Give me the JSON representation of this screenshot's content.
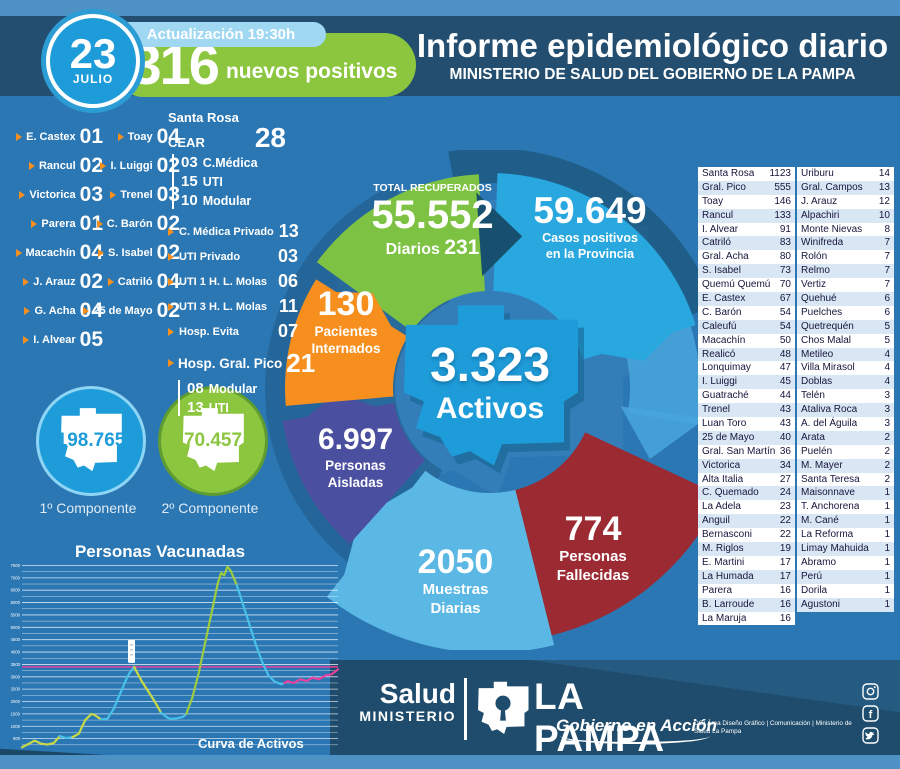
{
  "header": {
    "date_day": "23",
    "date_month": "JULIO",
    "update_label": "Actualización 19:30h",
    "new_positives_value": "316",
    "new_positives_label": "nuevos positivos",
    "title": "Informe epidemiológico diario",
    "subtitle": "MINISTERIO DE SALUD DEL GOBIERNO DE LA PAMPA"
  },
  "left_list": {
    "col1": [
      {
        "name": "E. Castex",
        "value": "01"
      },
      {
        "name": "Rancul",
        "value": "02"
      },
      {
        "name": "Victorica",
        "value": "03"
      },
      {
        "name": "Parera",
        "value": "01"
      },
      {
        "name": "Macachín",
        "value": "04"
      },
      {
        "name": "J. Arauz",
        "value": "02"
      },
      {
        "name": "G. Acha",
        "value": "04"
      },
      {
        "name": "I. Alvear",
        "value": "05"
      }
    ],
    "col2": [
      {
        "name": "Toay",
        "value": "04"
      },
      {
        "name": "I. Luiggi",
        "value": "02"
      },
      {
        "name": "Trenel",
        "value": "03"
      },
      {
        "name": "C. Barón",
        "value": "02"
      },
      {
        "name": "S. Isabel",
        "value": "02"
      },
      {
        "name": "Catriló",
        "value": "04"
      },
      {
        "name": "25 de Mayo",
        "value": "02"
      }
    ]
  },
  "cear": {
    "region": "Santa Rosa",
    "name": "CEAR",
    "total": "28",
    "breakdown": [
      {
        "value": "03",
        "label": "C.Médica"
      },
      {
        "value": "15",
        "label": "UTI"
      },
      {
        "value": "10",
        "label": "Modular"
      }
    ],
    "items": [
      {
        "label": "C. Médica Privado",
        "value": "13"
      },
      {
        "label": "UTI Privado",
        "value": "03"
      },
      {
        "label": "UTI 1 H. L. Molas",
        "value": "06"
      },
      {
        "label": "UTI 3 H. L. Molas",
        "value": "11"
      },
      {
        "label": "Hosp. Evita",
        "value": "07"
      }
    ],
    "gral_pico": {
      "label": "Hosp. Gral. Pico",
      "value": "21",
      "breakdown": [
        {
          "value": "08",
          "label": "Modular"
        },
        {
          "value": "13",
          "label": "UTI"
        }
      ]
    }
  },
  "vaccination": {
    "first": {
      "value": "198.765",
      "label": "1º Componente",
      "color": "#1E9CD9",
      "ring": "#8ED4F4"
    },
    "second": {
      "value": "70.457",
      "label": "2º Componente",
      "color": "#8CC63F",
      "ring": "#5E9C31"
    }
  },
  "donut": {
    "center": {
      "value": "3.323",
      "label": "Activos"
    },
    "recovered": {
      "title": "TOTAL RECUPERADOS",
      "value": "55.552",
      "daily_label": "Diarios",
      "daily_value": "231",
      "color": "#7DC242"
    },
    "positives": {
      "value": "59.649",
      "line1": "Casos positivos",
      "line2": "en la Provincia",
      "color": "#29A8E0"
    },
    "hospitalized": {
      "value": "130",
      "line1": "Pacientes",
      "line2": "Internados",
      "color": "#F78F1E"
    },
    "isolated": {
      "value": "6.997",
      "line1": "Personas",
      "line2": "Aisladas",
      "color": "#4B4F9F"
    },
    "samples": {
      "value": "2050",
      "line1": "Muestras",
      "line2": "Diarias",
      "color": "#5BB7E4"
    },
    "deaths": {
      "value": "774",
      "line1": "Personas",
      "line2": "Fallecidas",
      "color": "#9C2A33"
    }
  },
  "table": {
    "left_rows": [
      [
        "Santa Rosa",
        "1123"
      ],
      [
        "Gral. Pico",
        "555"
      ],
      [
        "Toay",
        "146"
      ],
      [
        "Rancul",
        "133"
      ],
      [
        "I. Alvear",
        "91"
      ],
      [
        "Catriló",
        "83"
      ],
      [
        "Gral. Acha",
        "80"
      ],
      [
        "S. Isabel",
        "73"
      ],
      [
        "Quemú Quemú",
        "70"
      ],
      [
        "E. Castex",
        "67"
      ],
      [
        "C. Barón",
        "54"
      ],
      [
        "Caleufú",
        "54"
      ],
      [
        "Macachín",
        "50"
      ],
      [
        "Realicó",
        "48"
      ],
      [
        "Lonquimay",
        "47"
      ],
      [
        "I. Luiggi",
        "45"
      ],
      [
        "Guatraché",
        "44"
      ],
      [
        "Trenel",
        "43"
      ],
      [
        "Luan Toro",
        "43"
      ],
      [
        "25 de Mayo",
        "40"
      ],
      [
        "Gral. San Martín",
        "36"
      ],
      [
        "Victorica",
        "34"
      ],
      [
        "Alta Italia",
        "27"
      ],
      [
        "C. Quemado",
        "24"
      ],
      [
        "La Adela",
        "23"
      ],
      [
        "Anguil",
        "22"
      ],
      [
        "Bernasconi",
        "22"
      ],
      [
        "M. Riglos",
        "19"
      ],
      [
        "E. Martini",
        "17"
      ],
      [
        "La Humada",
        "17"
      ],
      [
        "Parera",
        "16"
      ],
      [
        "B. Larroude",
        "16"
      ],
      [
        "La Maruja",
        "16"
      ]
    ],
    "right_rows": [
      [
        "Uriburu",
        "14"
      ],
      [
        "Gral. Campos",
        "13"
      ],
      [
        "J. Arauz",
        "12"
      ],
      [
        "Alpachiri",
        "10"
      ],
      [
        "Monte Nievas",
        "8"
      ],
      [
        "Winifreda",
        "7"
      ],
      [
        "Rolón",
        "7"
      ],
      [
        "Relmo",
        "7"
      ],
      [
        "Vertiz",
        "7"
      ],
      [
        "Quehué",
        "6"
      ],
      [
        "Puelches",
        "6"
      ],
      [
        "Quetrequén",
        "5"
      ],
      [
        "Chos Malal",
        "5"
      ],
      [
        "Metileo",
        "4"
      ],
      [
        "Villa Mirasol",
        "4"
      ],
      [
        "Doblas",
        "4"
      ],
      [
        "Telén",
        "3"
      ],
      [
        "Ataliva Roca",
        "3"
      ],
      [
        "A. del Águila",
        "3"
      ],
      [
        "Arata",
        "2"
      ],
      [
        "Puelén",
        "2"
      ],
      [
        "M. Mayer",
        "2"
      ],
      [
        "Santa Teresa",
        "2"
      ],
      [
        "Maisonnave",
        "1"
      ],
      [
        "T. Anchorena",
        "1"
      ],
      [
        "M. Cané",
        "1"
      ],
      [
        "La Reforma",
        "1"
      ],
      [
        "Limay Mahuida",
        "1"
      ],
      [
        "Abramo",
        "1"
      ],
      [
        "Perú",
        "1"
      ],
      [
        "Dorila",
        "1"
      ],
      [
        "Agustoni",
        "1"
      ]
    ]
  },
  "chart_data": {
    "type": "line",
    "title": "Personas Vacunadas",
    "footer_label": "Curva de Activos",
    "xlabel": "",
    "ylabel": "",
    "y_max": 7600,
    "grid_step": 250,
    "grid_on": true,
    "y_ticks": [
      "500",
      "1000",
      "1500",
      "2000",
      "2500",
      "3000",
      "3500",
      "4000",
      "4500",
      "5000",
      "5500",
      "6000",
      "6500",
      "7000",
      "7500"
    ],
    "ref_value": 3400,
    "ref_color": "#E83E9C",
    "points": [
      [
        0,
        150
      ],
      [
        2,
        280
      ],
      [
        4,
        420
      ],
      [
        6,
        300
      ],
      [
        8,
        260
      ],
      [
        10,
        320
      ],
      [
        12,
        600
      ],
      [
        14,
        520
      ],
      [
        16,
        560
      ],
      [
        18,
        700
      ],
      [
        20,
        1250
      ],
      [
        22,
        1500
      ],
      [
        23,
        1450
      ],
      [
        25,
        1280
      ],
      [
        27,
        1300
      ],
      [
        29,
        1700
      ],
      [
        31,
        2300
      ],
      [
        33,
        2900
      ],
      [
        34,
        3150
      ],
      [
        35.5,
        3400
      ],
      [
        36.5,
        3150
      ],
      [
        38,
        2800
      ],
      [
        40,
        2400
      ],
      [
        42,
        2000
      ],
      [
        44,
        1550
      ],
      [
        46,
        1350
      ],
      [
        47,
        1300
      ],
      [
        49,
        1320
      ],
      [
        51,
        1380
      ],
      [
        52,
        1500
      ],
      [
        54,
        2200
      ],
      [
        56,
        3200
      ],
      [
        58,
        4400
      ],
      [
        60,
        5600
      ],
      [
        62,
        6800
      ],
      [
        63,
        7200
      ],
      [
        64,
        7100
      ],
      [
        65,
        7450
      ],
      [
        66,
        7300
      ],
      [
        68,
        6700
      ],
      [
        70,
        5900
      ],
      [
        72,
        5100
      ],
      [
        74,
        4300
      ],
      [
        76,
        3600
      ],
      [
        78,
        3050
      ],
      [
        80,
        2800
      ],
      [
        82,
        2700
      ],
      [
        83,
        2750
      ],
      [
        84,
        2820
      ],
      [
        86,
        2750
      ],
      [
        88,
        2900
      ],
      [
        90,
        2830
      ],
      [
        92,
        2960
      ],
      [
        94,
        2900
      ],
      [
        96,
        3050
      ],
      [
        98,
        3100
      ],
      [
        100,
        3300
      ]
    ],
    "segments": [
      {
        "color": "#C8D945",
        "from": 0,
        "to": 12
      },
      {
        "color": "#49C0E8",
        "from": 12,
        "to": 16
      },
      {
        "color": "#C8D945",
        "from": 16,
        "to": 25
      },
      {
        "color": "#49C0E8",
        "from": 25,
        "to": 35.5
      },
      {
        "color": "#C8D945",
        "from": 35.5,
        "to": 44
      },
      {
        "color": "#49C0E8",
        "from": 44,
        "to": 52
      },
      {
        "color": "#9ECB3F",
        "from": 52,
        "to": 68
      },
      {
        "color": "#49C0E8",
        "from": 68,
        "to": 83
      },
      {
        "color": "#E8409E",
        "from": 83,
        "to": 100
      }
    ]
  },
  "footer": {
    "ministry_line1": "Salud",
    "ministry_line2": "MINISTERIO",
    "brand": "LA PAMPA",
    "brand_sub": "Gobierno en Acción",
    "credits": "DGI Área Diseño Gráfico | Comunicación | Ministerio de Salud La Pampa",
    "social": [
      "instagram",
      "facebook",
      "twitter"
    ]
  }
}
